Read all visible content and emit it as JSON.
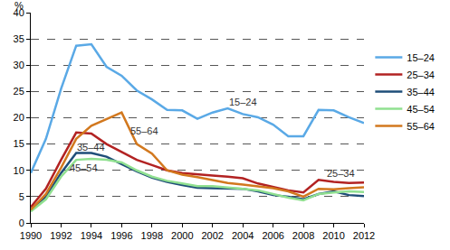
{
  "chart_data": {
    "type": "line",
    "ylabel": "%",
    "x": [
      1990,
      1991,
      1992,
      1993,
      1994,
      1995,
      1996,
      1997,
      1998,
      1999,
      2000,
      2001,
      2002,
      2003,
      2004,
      2005,
      2006,
      2007,
      2008,
      2009,
      2010,
      2011,
      2012
    ],
    "xlim": [
      1990,
      2012
    ],
    "xticks": [
      1990,
      1992,
      1994,
      1996,
      1998,
      2000,
      2002,
      2004,
      2006,
      2008,
      2010,
      2012
    ],
    "ylim": [
      0,
      40
    ],
    "yticks": [
      0,
      5,
      10,
      15,
      20,
      25,
      30,
      35,
      40
    ],
    "grid": true,
    "legend": "right",
    "series": [
      {
        "name": "15–24",
        "color": "#5aa9e6",
        "values": [
          9.5,
          16,
          25.5,
          33.7,
          34,
          29.7,
          28,
          25.2,
          23.5,
          21.5,
          21.4,
          19.8,
          21,
          21.8,
          20.7,
          20.1,
          18.7,
          16.5,
          16.5,
          21.5,
          21.4,
          20.1,
          19
        ]
      },
      {
        "name": "25–34",
        "color": "#b22222",
        "values": [
          3,
          6.5,
          12,
          17.2,
          17,
          15,
          13.5,
          12,
          11,
          10,
          9.5,
          9.2,
          9,
          8.8,
          8.5,
          7.5,
          6.8,
          6.2,
          5.8,
          8.2,
          7.8,
          7.6,
          7.7
        ]
      },
      {
        "name": "35–44",
        "color": "#1f4e79",
        "values": [
          2.5,
          5,
          9.5,
          13.3,
          13.3,
          12.6,
          11.2,
          9.8,
          8.6,
          7.8,
          7.2,
          6.7,
          6.6,
          6.6,
          6.5,
          6,
          5.3,
          5,
          4.5,
          5.5,
          6,
          5.3,
          5.1
        ]
      },
      {
        "name": "45–54",
        "color": "#90e090",
        "values": [
          2.2,
          4.5,
          8.8,
          12,
          12.2,
          12,
          11.5,
          10,
          8.8,
          8,
          7.5,
          7,
          7,
          6.8,
          6.5,
          6.2,
          5.5,
          4.8,
          4.3,
          5.5,
          5.8,
          6,
          5.9
        ]
      },
      {
        "name": "55–64",
        "color": "#d2781e",
        "values": [
          2.5,
          5.5,
          10.5,
          16,
          18.5,
          19.8,
          21,
          15,
          13.2,
          10,
          9.2,
          8.7,
          8.2,
          7.6,
          7.3,
          7,
          6.6,
          6,
          5,
          6.5,
          6.4,
          6.6,
          6.8
        ]
      }
    ],
    "annotations": [
      {
        "text": "15–24",
        "x": 2004,
        "y": 23
      },
      {
        "text": "25–34",
        "x": 2010.5,
        "y": 9.5
      },
      {
        "text": "55–64",
        "x": 1997.5,
        "y": 17.5
      },
      {
        "text": "35–44",
        "x": 1994,
        "y": 14.5
      },
      {
        "text": "45–54",
        "x": 1993.5,
        "y": 10.5
      }
    ]
  }
}
